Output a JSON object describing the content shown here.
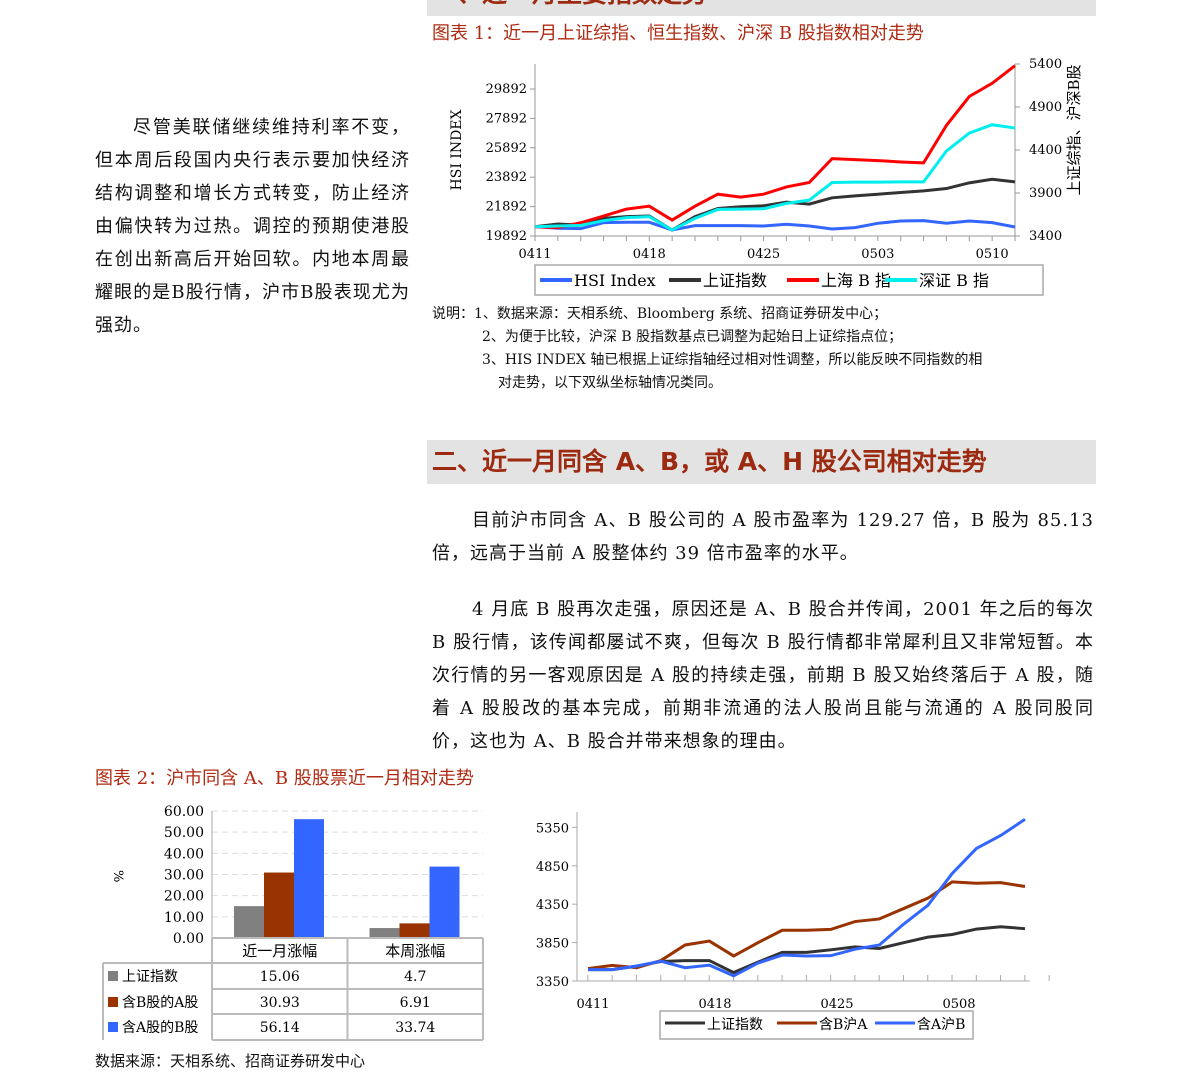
{
  "section1": {
    "heading": "一、近一月主要指数走势"
  },
  "left_paragraph": "尽管美联储继续维持利率不变，但本周后段国内央行表示要加快经济结构调整和增长方式转变，防止经济由偏快转为过热。调控的预期使港股在创出新高后开始回软。内地本周最耀眼的是B股行情，沪市B股表现尤为强劲。",
  "figure1": {
    "title": "图表 1：近一月上证综指、恒生指数、沪深 B 股指数相对走势"
  },
  "notes": {
    "label": "说明：",
    "items": [
      "1、数据来源：天相系统、Bloomberg 系统、招商证券研发中心；",
      "2、为便于比较，沪深 B 股指数基点已调整为起始日上证综指点位；",
      "3、HIS INDEX 轴已根据上证综指轴经过相对性调整，所以能反映不同指数的相",
      "对走势，以下双纵坐标轴情况类同。"
    ]
  },
  "section2": {
    "heading": "二、近一月同含 A、B，或 A、H 股公司相对走势"
  },
  "paragraphs": [
    "目前沪市同含 A、B 股公司的 A 股市盈率为 129.27 倍，B 股为 85.13 倍，远高于当前 A 股整体约 39 倍市盈率的水平。",
    "4 月底 B 股再次走强，原因还是 A、B 股合并传闻，2001 年之后的每次 B 股行情，该传闻都屡试不爽，但每次 B 股行情都非常犀利且又非常短暂。本次行情的另一客观原因是 A 股的持续走强，前期 B 股又始终落后于 A 股，随着 A 股股改的基本完成，前期非流通的法人股尚且能与流通的 A 股同股同价，这也为 A、B 股合并带来想象的理由。"
  ],
  "figure2": {
    "title": "图表 2：沪市同含 A、B 股股票近一月相对走势"
  },
  "source": "数据来源：天相系统、招商证券研发中心",
  "chart_data": [
    {
      "type": "line",
      "x_ticks": [
        "0411",
        "0418",
        "0425",
        "0503",
        "0510"
      ],
      "ylabel_left": "HSI  INDEX",
      "ylabel_right": "上证综指、沪深B股",
      "yticks_left": [
        19892,
        21892,
        23892,
        25892,
        27892,
        29892
      ],
      "yticks_right": [
        3400,
        3900,
        4400,
        4900,
        5400
      ],
      "ylim_right": [
        3400,
        5400
      ],
      "ylim_left": [
        19892,
        31592
      ],
      "legend_position": "bottom",
      "series": [
        {
          "name": "HSI  Index",
          "axis": "left",
          "color": "#3366ff",
          "values": [
            20528,
            20415,
            20392,
            20801,
            20824,
            20824,
            20301,
            20597,
            20597,
            20597,
            20574,
            20688,
            20574,
            20369,
            20460,
            20756,
            20915,
            20938,
            20756,
            20915,
            20801,
            20506
          ]
        },
        {
          "name": "上证指数",
          "axis": "right",
          "color": "#333333",
          "values": [
            3508,
            3539,
            3527,
            3605,
            3625,
            3632,
            3469,
            3625,
            3720,
            3740,
            3751,
            3794,
            3771,
            3844,
            3867,
            3886,
            3906,
            3925,
            3952,
            4018,
            4060,
            4029
          ]
        },
        {
          "name": "上海 B 指",
          "axis": "right",
          "color": "#ff0000",
          "values": [
            3508,
            3497,
            3554,
            3632,
            3713,
            3747,
            3585,
            3747,
            3886,
            3852,
            3886,
            3971,
            4022,
            4300,
            4288,
            4277,
            4261,
            4250,
            4686,
            5022,
            5176,
            5381
          ]
        },
        {
          "name": "深证 B 指",
          "axis": "right",
          "color": "#00eeee",
          "values": [
            3508,
            3516,
            3524,
            3578,
            3613,
            3625,
            3469,
            3605,
            3709,
            3713,
            3717,
            3779,
            3817,
            4022,
            4026,
            4026,
            4029,
            4029,
            4388,
            4597,
            4694,
            4655
          ]
        }
      ]
    },
    {
      "type": "bar",
      "categories": [
        "近一月涨幅",
        "本周涨幅"
      ],
      "ylabel": "%",
      "ylim": [
        0,
        60
      ],
      "yticks": [
        "0.00",
        "10.00",
        "20.00",
        "30.00",
        "40.00",
        "50.00",
        "60.00"
      ],
      "grid": true,
      "series": [
        {
          "name": "上证指数",
          "color": "#808080",
          "values": [
            15.06,
            4.7
          ],
          "labels": [
            "15.06",
            "4.7"
          ]
        },
        {
          "name": "含B股的A股",
          "color": "#993300",
          "values": [
            30.93,
            6.91
          ],
          "labels": [
            "30.93",
            "6.91"
          ]
        },
        {
          "name": "含A股的B股",
          "color": "#3366ff",
          "values": [
            56.14,
            33.74
          ],
          "labels": [
            "56.14",
            "33.74"
          ]
        }
      ]
    },
    {
      "type": "line",
      "x_ticks": [
        "0411",
        "0418",
        "0425",
        "0508"
      ],
      "yticks": [
        3350,
        3850,
        4350,
        4850,
        5350
      ],
      "ylim": [
        3350,
        5550
      ],
      "legend_position": "bottom",
      "series": [
        {
          "name": "上证指数",
          "color": "#333333",
          "values": [
            3498,
            3498,
            3544,
            3604,
            3616,
            3616,
            3460,
            3595,
            3722,
            3722,
            3756,
            3794,
            3773,
            3849,
            3921,
            3955,
            4026,
            4056,
            4031
          ]
        },
        {
          "name": "含B沪A",
          "color": "#993300",
          "values": [
            3511,
            3553,
            3523,
            3616,
            3819,
            3870,
            3676,
            3849,
            4010,
            4010,
            4022,
            4124,
            4158,
            4293,
            4428,
            4640,
            4623,
            4631,
            4580
          ]
        },
        {
          "name": "含A沪B",
          "color": "#3366ff",
          "values": [
            3498,
            3498,
            3544,
            3608,
            3523,
            3557,
            3418,
            3583,
            3688,
            3676,
            3680,
            3764,
            3819,
            4090,
            4335,
            4749,
            5075,
            5244,
            5455
          ]
        }
      ]
    }
  ]
}
